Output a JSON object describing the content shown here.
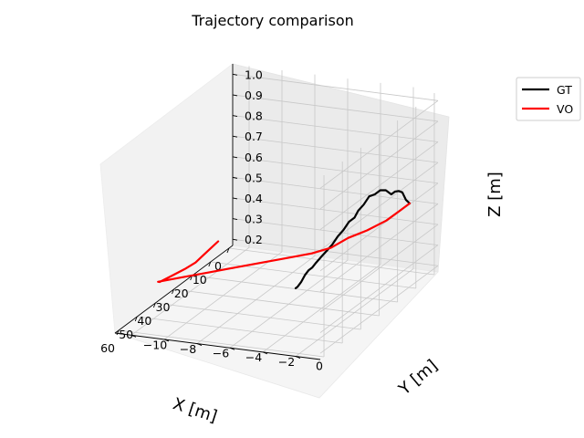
{
  "chart_data": {
    "type": "line",
    "title": "Trajectory comparison",
    "xlabel": "X [m]",
    "ylabel": "Y [m]",
    "zlabel": "Z [m]",
    "xlim": [
      -2,
      62
    ],
    "ylim": [
      -11,
      1.5
    ],
    "zlim": [
      0.17,
      1.05
    ],
    "x_ticks": [
      0,
      10,
      20,
      30,
      40,
      50,
      60
    ],
    "y_ticks": [
      0,
      -2,
      -4,
      -6,
      -8,
      -10
    ],
    "y_tick_labels": [
      "0",
      "−2",
      "−4",
      "−6",
      "−8",
      "−10"
    ],
    "z_ticks": [
      0.2,
      0.3,
      0.4,
      0.5,
      0.6,
      0.7,
      0.8,
      0.9,
      1.0
    ],
    "z_tick_labels": [
      "0.2",
      "0.3",
      "0.4",
      "0.5",
      "0.6",
      "0.7",
      "0.8",
      "0.9",
      "1.0"
    ],
    "grid": true,
    "legend_position": "top-right",
    "series": [
      {
        "name": "GT",
        "color": "#000000",
        "x": [
          0,
          2,
          4,
          6,
          8,
          10,
          13,
          16,
          19,
          22,
          25,
          28,
          30,
          33,
          36,
          39,
          42,
          45,
          48,
          51,
          53,
          55,
          57,
          59,
          61,
          62
        ],
        "y": [
          0,
          0,
          0,
          0,
          0,
          0,
          0,
          0,
          0,
          0,
          0,
          0,
          0,
          0,
          0,
          0,
          0,
          0,
          0,
          0,
          0,
          0,
          0,
          0,
          0,
          0
        ],
        "z": [
          0.5,
          0.53,
          0.58,
          0.6,
          0.61,
          0.61,
          0.65,
          0.67,
          0.67,
          0.68,
          0.66,
          0.65,
          0.63,
          0.63,
          0.61,
          0.6,
          0.58,
          0.57,
          0.56,
          0.55,
          0.54,
          0.54,
          0.53,
          0.51,
          0.5,
          0.5
        ]
      },
      {
        "name": "VO",
        "color": "#ff0000",
        "x": [
          0,
          5,
          10,
          15,
          20,
          25,
          30,
          35,
          40,
          45,
          50,
          55,
          60,
          60,
          55,
          50,
          45,
          40,
          35,
          30
        ],
        "y": [
          0,
          0,
          -0.3,
          -0.9,
          -1.5,
          -2.0,
          -2.6,
          -3.6,
          -4.6,
          -5.6,
          -6.6,
          -7.6,
          -8.6,
          -8.5,
          -8.3,
          -8.1,
          -8.0,
          -8.1,
          -8.2,
          -8.3
        ],
        "z": [
          0.5,
          0.5,
          0.48,
          0.46,
          0.45,
          0.43,
          0.43,
          0.43,
          0.43,
          0.43,
          0.43,
          0.43,
          0.43,
          0.43,
          0.43,
          0.43,
          0.43,
          0.43,
          0.43,
          0.43
        ]
      }
    ]
  }
}
